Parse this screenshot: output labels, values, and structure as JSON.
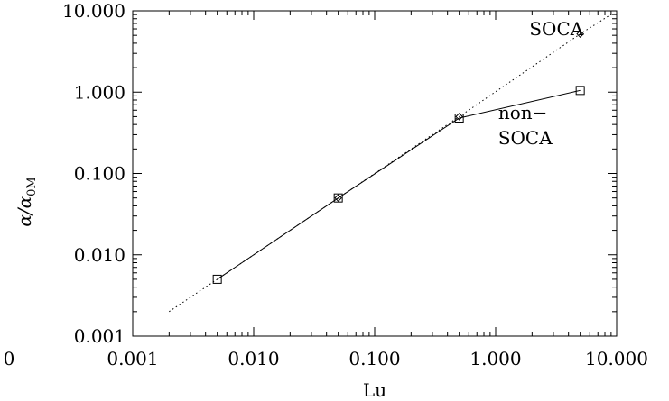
{
  "chart_data": {
    "type": "line",
    "x_scale": "log",
    "y_scale": "log",
    "xlim": [
      0.001,
      10.0
    ],
    "ylim": [
      0.001,
      10.0
    ],
    "xlabel": "Lu",
    "ylabel": "α/α0M",
    "ylabel_parts": {
      "main": "α/α",
      "sub": "0M"
    },
    "x_ticks": [
      {
        "value": 0.001,
        "label": "0.001"
      },
      {
        "value": 0.01,
        "label": "0.010"
      },
      {
        "value": 0.1,
        "label": "0.100"
      },
      {
        "value": 1.0,
        "label": "1.000"
      },
      {
        "value": 10.0,
        "label": "10.000"
      }
    ],
    "x_edge_label": {
      "value": 0.0001,
      "label": "0"
    },
    "y_ticks": [
      {
        "value": 0.001,
        "label": "0.001"
      },
      {
        "value": 0.01,
        "label": "0.010"
      },
      {
        "value": 0.1,
        "label": "0.100"
      },
      {
        "value": 1.0,
        "label": "1.000"
      },
      {
        "value": 10.0,
        "label": "10.000"
      }
    ],
    "series": [
      {
        "name": "SOCA",
        "line": "dotted",
        "marker": "diamond",
        "x": [
          0.002,
          0.005,
          0.05,
          0.5,
          5.0,
          9.5
        ],
        "y": [
          0.002,
          0.005,
          0.05,
          0.5,
          5.2,
          9.5
        ],
        "marker_x": [
          0.05,
          0.5,
          5.0
        ],
        "marker_y": [
          0.05,
          0.5,
          5.2
        ]
      },
      {
        "name": "non-SOCA",
        "line": "solid",
        "marker": "square",
        "x": [
          0.005,
          0.05,
          0.5,
          5.0
        ],
        "y": [
          0.005,
          0.05,
          0.48,
          1.05
        ]
      }
    ],
    "annotations": [
      {
        "text": "SOCA",
        "x": 1.9,
        "y": 5.0
      },
      {
        "text": "non−",
        "x": 1.05,
        "y": 0.47
      },
      {
        "text": "SOCA",
        "x": 1.05,
        "y": 0.23
      }
    ]
  }
}
